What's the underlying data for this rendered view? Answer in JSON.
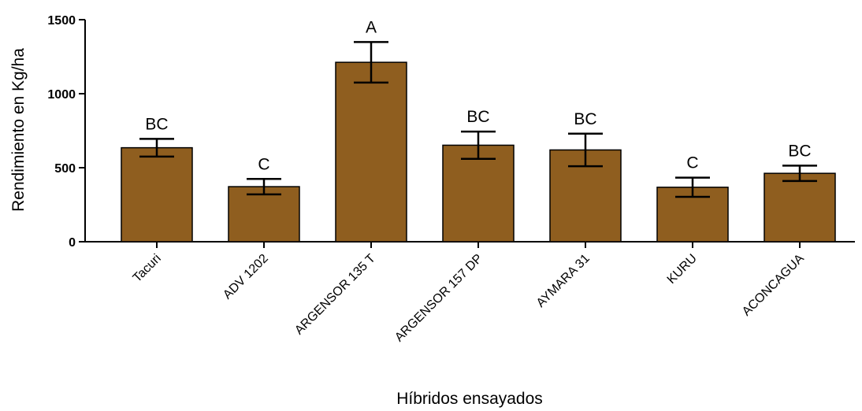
{
  "chart_data": {
    "type": "bar",
    "xlabel": "Híbridos ensayados",
    "ylabel": "Rendimiento en Kg/ha",
    "ylim": [
      0,
      1500
    ],
    "yticks": [
      0,
      500,
      1000,
      1500
    ],
    "categories": [
      "Tacuri",
      "ADV 1202",
      "ARGENSOR 135 T",
      "ARGENSOR 157 DP",
      "AYMARA 31",
      "KURU",
      "ACONCAGUA"
    ],
    "values": [
      635,
      372,
      1212,
      652,
      620,
      368,
      462
    ],
    "error": [
      60,
      52,
      137,
      92,
      110,
      65,
      52
    ],
    "significance": [
      "BC",
      "C",
      "A",
      "BC",
      "BC",
      "C",
      "BC"
    ],
    "bar_color": "#8f5e1f",
    "grid": false,
    "legend": "none"
  }
}
